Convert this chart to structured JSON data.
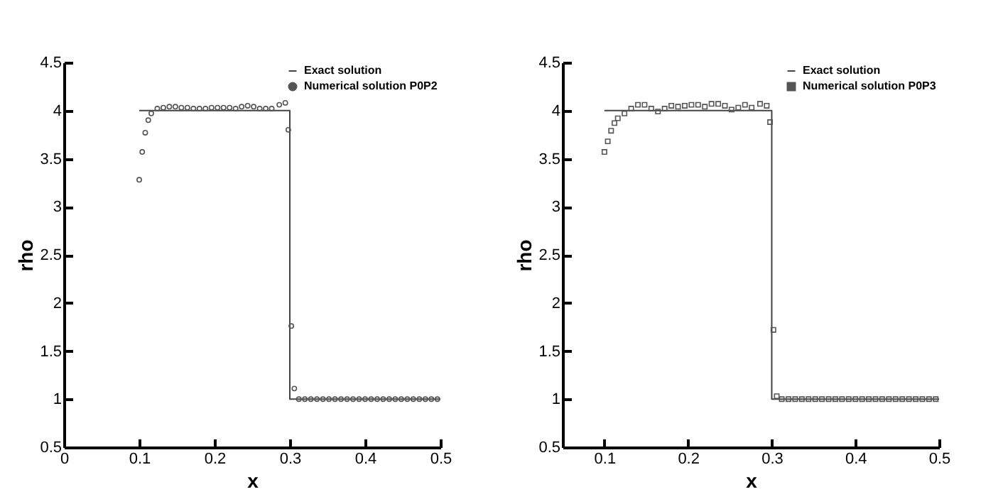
{
  "chart_data": [
    {
      "type": "line",
      "xlabel": "x",
      "ylabel": "rho",
      "xlim": [
        0,
        0.5
      ],
      "ylim": [
        0.5,
        4.5
      ],
      "xticks": [
        0,
        0.1,
        0.2,
        0.3,
        0.4,
        0.5
      ],
      "yticks": [
        0.5,
        1,
        1.5,
        2,
        2.5,
        3,
        3.5,
        4,
        4.5
      ],
      "legend": "top right",
      "series": [
        {
          "name": "Exact solution",
          "type": "line",
          "color": "#444444",
          "x": [
            0.1,
            0.3,
            0.3,
            0.5
          ],
          "values": [
            4,
            4,
            1,
            1
          ]
        },
        {
          "name": "Numerical solution P0P2",
          "type": "scatter",
          "marker": "circle",
          "color": "#555555",
          "x": [
            0.1,
            0.104,
            0.108,
            0.112,
            0.116,
            0.124,
            0.132,
            0.14,
            0.148,
            0.156,
            0.164,
            0.172,
            0.18,
            0.188,
            0.196,
            0.204,
            0.212,
            0.22,
            0.228,
            0.236,
            0.244,
            0.252,
            0.26,
            0.268,
            0.276,
            0.286,
            0.294,
            0.298,
            0.302,
            0.306,
            0.312,
            0.32,
            0.328,
            0.336,
            0.344,
            0.352,
            0.36,
            0.368,
            0.376,
            0.384,
            0.392,
            0.4,
            0.408,
            0.416,
            0.424,
            0.432,
            0.44,
            0.448,
            0.456,
            0.464,
            0.472,
            0.48,
            0.488,
            0.496
          ],
          "values": [
            3.28,
            3.57,
            3.77,
            3.9,
            3.97,
            4.02,
            4.03,
            4.04,
            4.04,
            4.03,
            4.03,
            4.02,
            4.02,
            4.02,
            4.03,
            4.03,
            4.03,
            4.03,
            4.02,
            4.04,
            4.05,
            4.04,
            4.02,
            4.02,
            4.02,
            4.06,
            4.08,
            3.8,
            1.76,
            1.11,
            1,
            1,
            1,
            1,
            1,
            1,
            1,
            1,
            1,
            1,
            1,
            1,
            1,
            1,
            1,
            1,
            1,
            1,
            1,
            1,
            1,
            1,
            1,
            1
          ]
        }
      ]
    },
    {
      "type": "line",
      "xlabel": "x",
      "ylabel": "rho",
      "xlim": [
        0.05,
        0.5
      ],
      "ylim": [
        0.5,
        4.5
      ],
      "xticks": [
        0.1,
        0.2,
        0.3,
        0.4,
        0.5
      ],
      "yticks": [
        0.5,
        1,
        1.5,
        2,
        2.5,
        3,
        3.5,
        4,
        4.5
      ],
      "legend": "top right",
      "series": [
        {
          "name": "Exact solution",
          "type": "line",
          "color": "#444444",
          "x": [
            0.1,
            0.3,
            0.3,
            0.5
          ],
          "values": [
            4,
            4,
            1,
            1
          ]
        },
        {
          "name": "Numerical solution P0P3",
          "type": "scatter",
          "marker": "square",
          "color": "#555555",
          "x": [
            0.1,
            0.104,
            0.108,
            0.112,
            0.116,
            0.124,
            0.132,
            0.14,
            0.148,
            0.156,
            0.164,
            0.172,
            0.18,
            0.188,
            0.196,
            0.204,
            0.212,
            0.22,
            0.228,
            0.236,
            0.244,
            0.252,
            0.26,
            0.268,
            0.276,
            0.286,
            0.294,
            0.298,
            0.302,
            0.306,
            0.312,
            0.32,
            0.328,
            0.336,
            0.344,
            0.352,
            0.36,
            0.368,
            0.376,
            0.384,
            0.392,
            0.4,
            0.408,
            0.416,
            0.424,
            0.432,
            0.44,
            0.448,
            0.456,
            0.464,
            0.472,
            0.48,
            0.488,
            0.496
          ],
          "values": [
            3.57,
            3.68,
            3.79,
            3.87,
            3.92,
            3.97,
            4.02,
            4.06,
            4.06,
            4.02,
            3.99,
            4.02,
            4.05,
            4.04,
            4.05,
            4.06,
            4.06,
            4.04,
            4.07,
            4.07,
            4.05,
            4.01,
            4.03,
            4.06,
            4.03,
            4.07,
            4.05,
            3.88,
            1.72,
            1.03,
            1,
            1,
            1,
            1,
            1,
            1,
            1,
            1,
            1,
            1,
            1,
            1,
            1,
            1,
            1,
            1,
            1,
            1,
            1,
            1,
            1,
            1,
            1,
            1
          ]
        }
      ]
    }
  ]
}
